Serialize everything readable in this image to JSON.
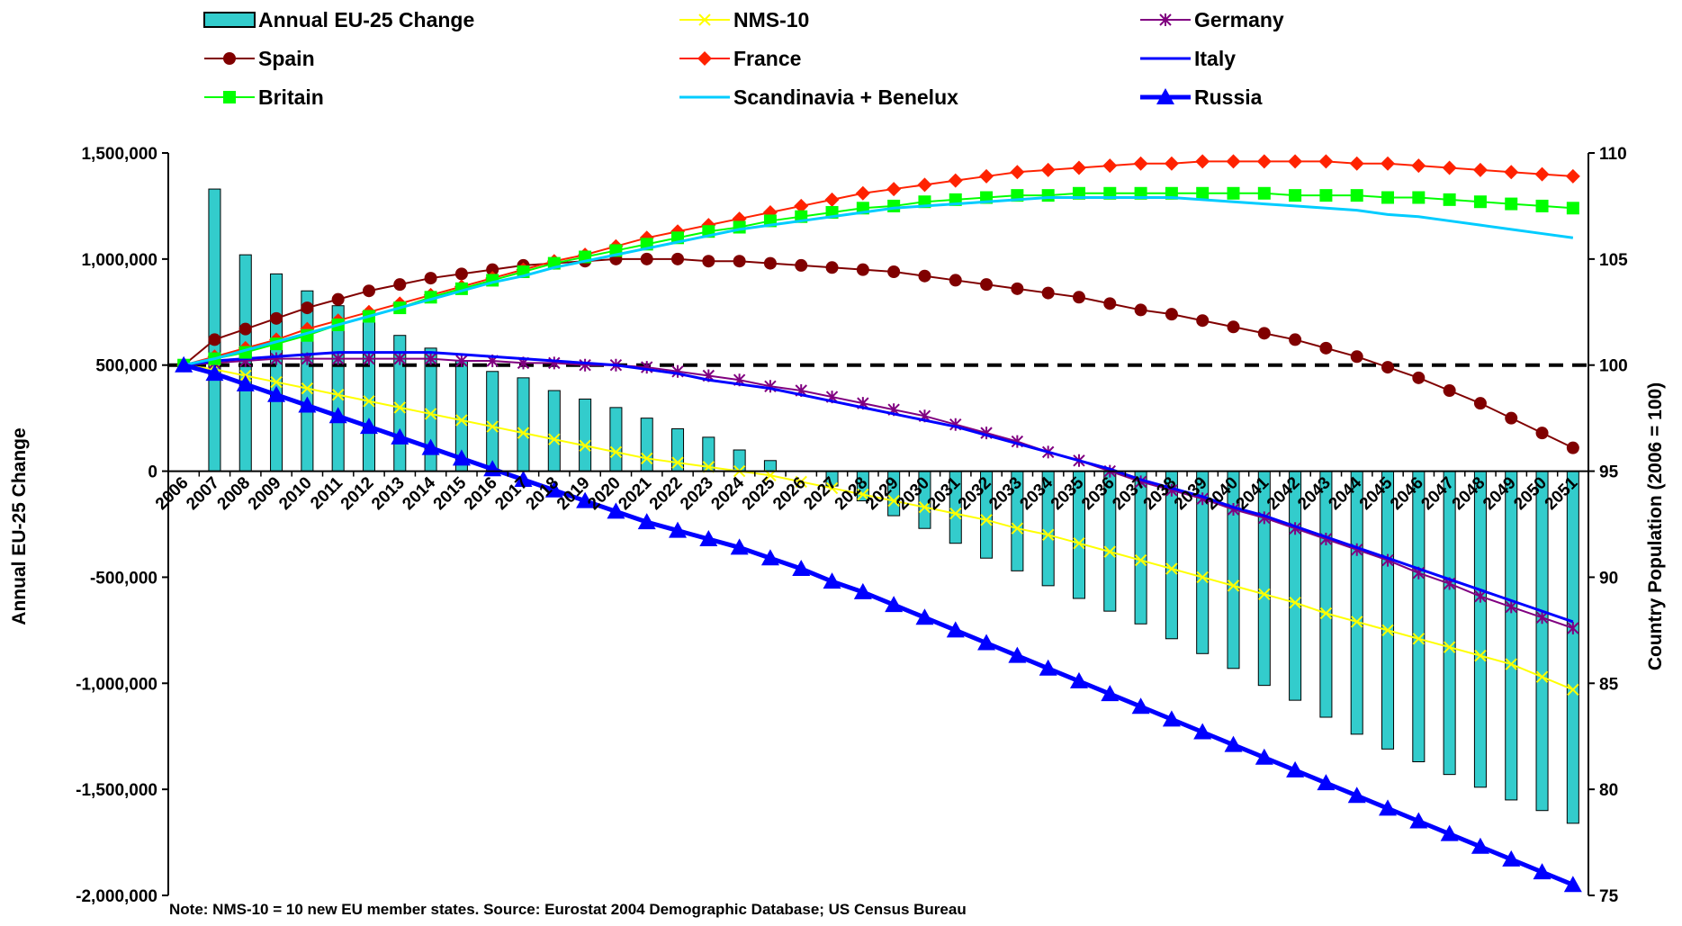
{
  "chart_data": {
    "type": "bar",
    "categories": [
      "2006",
      "2007",
      "2008",
      "2009",
      "2010",
      "2011",
      "2012",
      "2013",
      "2014",
      "2015",
      "2016",
      "2017",
      "2018",
      "2019",
      "2020",
      "2021",
      "2022",
      "2023",
      "2024",
      "2025",
      "2026",
      "2027",
      "2028",
      "2029",
      "2030",
      "2031",
      "2032",
      "2033",
      "2034",
      "2035",
      "2036",
      "2037",
      "2038",
      "2039",
      "2040",
      "2041",
      "2042",
      "2043",
      "2044",
      "2045",
      "2046",
      "2047",
      "2048",
      "2049",
      "2050",
      "2051"
    ],
    "left_axis": {
      "label": "Annual EU-25 Change",
      "range": [
        -2000000,
        1500000
      ],
      "ticks": [
        1500000,
        1000000,
        500000,
        0,
        -500000,
        -1000000,
        -1500000,
        -2000000
      ],
      "tick_labels": [
        "1,500,000",
        "1,000,000",
        "500,000",
        "0",
        "-500,000",
        "-1,000,000",
        "-1,500,000",
        "-2,000,000"
      ]
    },
    "right_axis": {
      "label": "Country Population (2006 = 100)",
      "range": [
        75,
        110
      ],
      "ticks": [
        110,
        105,
        100,
        95,
        90,
        85,
        80,
        75
      ],
      "tick_labels": [
        "110",
        "105",
        "100",
        "95",
        "90",
        "85",
        "80",
        "75"
      ]
    },
    "reference_line": {
      "axis": "right",
      "value": 100,
      "style": "dashed",
      "color": "#000000"
    },
    "bar_series": {
      "name": "Annual EU-25 Change",
      "color": "#33cccc",
      "values": [
        null,
        1330000,
        1020000,
        930000,
        850000,
        780000,
        710000,
        640000,
        580000,
        520000,
        470000,
        440000,
        380000,
        340000,
        300000,
        250000,
        200000,
        160000,
        100000,
        50000,
        0,
        -70000,
        -140000,
        -210000,
        -270000,
        -340000,
        -410000,
        -470000,
        -540000,
        -600000,
        -660000,
        -720000,
        -790000,
        -860000,
        -930000,
        -1010000,
        -1080000,
        -1160000,
        -1240000,
        -1310000,
        -1370000,
        -1430000,
        -1490000,
        -1550000,
        -1600000,
        -1660000
      ]
    },
    "series": [
      {
        "name": "NMS-10",
        "color": "#ffff00",
        "marker": "x",
        "values": [
          100,
          99.8,
          99.5,
          99.2,
          98.9,
          98.6,
          98.3,
          98.0,
          97.7,
          97.4,
          97.1,
          96.8,
          96.5,
          96.2,
          95.9,
          95.6,
          95.4,
          95.2,
          95.0,
          94.8,
          94.5,
          94.2,
          93.9,
          93.6,
          93.3,
          93.0,
          92.7,
          92.3,
          92.0,
          91.6,
          91.2,
          90.8,
          90.4,
          90.0,
          89.6,
          89.2,
          88.8,
          88.3,
          87.9,
          87.5,
          87.1,
          86.7,
          86.3,
          85.9,
          85.3,
          84.7
        ]
      },
      {
        "name": "Germany",
        "color": "#800080",
        "marker": "asterisk",
        "values": [
          100,
          100.1,
          100.2,
          100.3,
          100.3,
          100.3,
          100.3,
          100.3,
          100.3,
          100.2,
          100.2,
          100.1,
          100.1,
          100.0,
          100.0,
          99.9,
          99.7,
          99.5,
          99.3,
          99.0,
          98.8,
          98.5,
          98.2,
          97.9,
          97.6,
          97.2,
          96.8,
          96.4,
          95.9,
          95.5,
          95.0,
          94.5,
          94.1,
          93.7,
          93.2,
          92.8,
          92.3,
          91.8,
          91.3,
          90.8,
          90.2,
          89.7,
          89.1,
          88.6,
          88.1,
          87.6
        ]
      },
      {
        "name": "Spain",
        "color": "#800000",
        "marker": "circle",
        "values": [
          100,
          101.2,
          101.7,
          102.2,
          102.7,
          103.1,
          103.5,
          103.8,
          104.1,
          104.3,
          104.5,
          104.7,
          104.8,
          104.9,
          105.0,
          105.0,
          105.0,
          104.9,
          104.9,
          104.8,
          104.7,
          104.6,
          104.5,
          104.4,
          104.2,
          104.0,
          103.8,
          103.6,
          103.4,
          103.2,
          102.9,
          102.6,
          102.4,
          102.1,
          101.8,
          101.5,
          101.2,
          100.8,
          100.4,
          99.9,
          99.4,
          98.8,
          98.2,
          97.5,
          96.8,
          96.1
        ]
      },
      {
        "name": "France",
        "color": "#ff2200",
        "marker": "diamond",
        "values": [
          100,
          100.4,
          100.8,
          101.2,
          101.7,
          102.1,
          102.5,
          102.9,
          103.3,
          103.7,
          104.1,
          104.5,
          104.9,
          105.2,
          105.6,
          106.0,
          106.3,
          106.6,
          106.9,
          107.2,
          107.5,
          107.8,
          108.1,
          108.3,
          108.5,
          108.7,
          108.9,
          109.1,
          109.2,
          109.3,
          109.4,
          109.5,
          109.5,
          109.6,
          109.6,
          109.6,
          109.6,
          109.6,
          109.5,
          109.5,
          109.4,
          109.3,
          109.2,
          109.1,
          109.0,
          108.9
        ]
      },
      {
        "name": "Italy",
        "color": "#0000ff",
        "marker": "none",
        "values": [
          100,
          100.2,
          100.3,
          100.4,
          100.5,
          100.6,
          100.6,
          100.6,
          100.6,
          100.5,
          100.4,
          100.3,
          100.2,
          100.1,
          100.0,
          99.8,
          99.6,
          99.3,
          99.1,
          98.9,
          98.6,
          98.3,
          98.0,
          97.7,
          97.4,
          97.1,
          96.7,
          96.3,
          95.9,
          95.5,
          95.1,
          94.6,
          94.2,
          93.8,
          93.3,
          92.9,
          92.4,
          91.9,
          91.4,
          90.9,
          90.4,
          89.9,
          89.4,
          88.9,
          88.4,
          87.9
        ]
      },
      {
        "name": "Britain",
        "color": "#00ff00",
        "marker": "square",
        "values": [
          100,
          100.3,
          100.6,
          101.0,
          101.4,
          101.9,
          102.3,
          102.7,
          103.2,
          103.6,
          104.0,
          104.4,
          104.8,
          105.1,
          105.4,
          105.7,
          106.0,
          106.3,
          106.5,
          106.8,
          107.0,
          107.2,
          107.4,
          107.5,
          107.7,
          107.8,
          107.9,
          108.0,
          108.0,
          108.1,
          108.1,
          108.1,
          108.1,
          108.1,
          108.1,
          108.1,
          108.0,
          108.0,
          108.0,
          107.9,
          107.9,
          107.8,
          107.7,
          107.6,
          107.5,
          107.4
        ]
      },
      {
        "name": "Scandinavia + Benelux",
        "color": "#00ccff",
        "marker": "none",
        "values": [
          100,
          100.3,
          100.7,
          101.1,
          101.5,
          101.9,
          102.3,
          102.7,
          103.1,
          103.5,
          103.9,
          104.2,
          104.6,
          104.9,
          105.2,
          105.5,
          105.8,
          106.1,
          106.4,
          106.6,
          106.8,
          107.0,
          107.2,
          107.4,
          107.5,
          107.6,
          107.7,
          107.8,
          107.9,
          107.9,
          107.9,
          107.9,
          107.9,
          107.8,
          107.7,
          107.6,
          107.5,
          107.4,
          107.3,
          107.1,
          107.0,
          106.8,
          106.6,
          106.4,
          106.2,
          106.0
        ]
      },
      {
        "name": "Russia",
        "color": "#0000ff",
        "marker": "triangle",
        "values": [
          100,
          99.6,
          99.1,
          98.6,
          98.1,
          97.6,
          97.1,
          96.6,
          96.1,
          95.6,
          95.1,
          94.6,
          94.1,
          93.6,
          93.1,
          92.6,
          92.2,
          91.8,
          91.4,
          90.9,
          90.4,
          89.8,
          89.3,
          88.7,
          88.1,
          87.5,
          86.9,
          86.3,
          85.7,
          85.1,
          84.5,
          83.9,
          83.3,
          82.7,
          82.1,
          81.5,
          80.9,
          80.3,
          79.7,
          79.1,
          78.5,
          77.9,
          77.3,
          76.7,
          76.1,
          75.5
        ]
      }
    ],
    "legend": {
      "placement": "top",
      "entries": [
        "Annual EU-25 Change",
        "NMS-10",
        "Germany",
        "Spain",
        "France",
        "Italy",
        "Britain",
        "Scandinavia + Benelux",
        "Russia"
      ]
    },
    "note": "Note: NMS-10 = 10 new EU member states. Source: Eurostat 2004 Demographic Database; US Census Bureau",
    "grid": false
  }
}
